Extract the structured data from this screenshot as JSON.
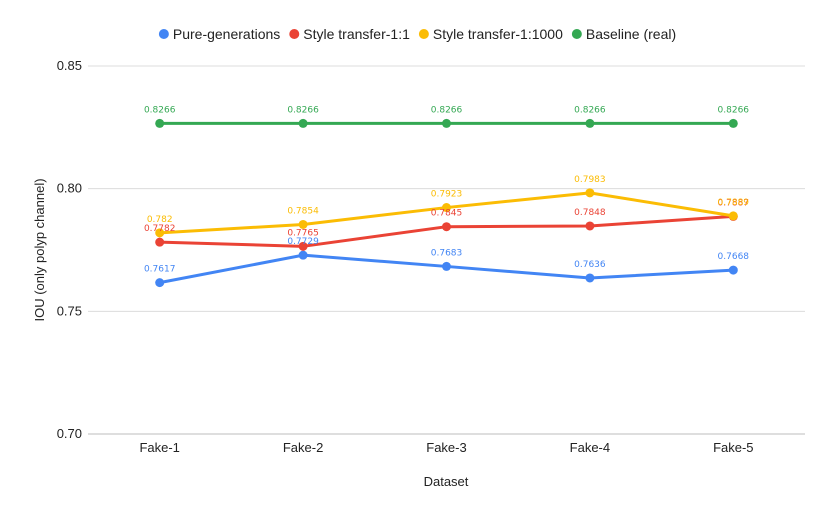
{
  "chart_data": {
    "type": "line",
    "title": "",
    "xlabel": "Dataset",
    "ylabel": "IOU (only polyp channel)",
    "categories": [
      "Fake-1",
      "Fake-2",
      "Fake-3",
      "Fake-4",
      "Fake-5"
    ],
    "ylim": [
      0.7,
      0.85
    ],
    "yticks": [
      0.7,
      0.75,
      0.8,
      0.85
    ],
    "ytick_labels": [
      "0.70",
      "0.75",
      "0.80",
      "0.85"
    ],
    "grid": true,
    "legend_position": "top",
    "series": [
      {
        "name": "Pure-generations",
        "color": "#4285f4",
        "values": [
          0.7617,
          0.7729,
          0.7683,
          0.7636,
          0.7668
        ],
        "labels": [
          "0.7617",
          "0.7729",
          "0.7683",
          "0.7636",
          "0.7668"
        ]
      },
      {
        "name": "Style transfer-1:1",
        "color": "#ea4335",
        "values": [
          0.7782,
          0.7765,
          0.7845,
          0.7848,
          0.7887
        ],
        "labels": [
          "0.7782",
          "0.7765",
          "0.7845",
          "0.7848",
          "0.7887"
        ]
      },
      {
        "name": "Style transfer-1:1000",
        "color": "#fbbc04",
        "values": [
          0.782,
          0.7854,
          0.7923,
          0.7983,
          0.7889
        ],
        "labels": [
          "0.782",
          "0.7854",
          "0.7923",
          "0.7983",
          "0.7889"
        ]
      },
      {
        "name": "Baseline (real)",
        "color": "#34a853",
        "values": [
          0.8266,
          0.8266,
          0.8266,
          0.8266,
          0.8266
        ],
        "labels": [
          "0.8266",
          "0.8266",
          "0.8266",
          "0.8266",
          "0.8266"
        ]
      }
    ]
  }
}
